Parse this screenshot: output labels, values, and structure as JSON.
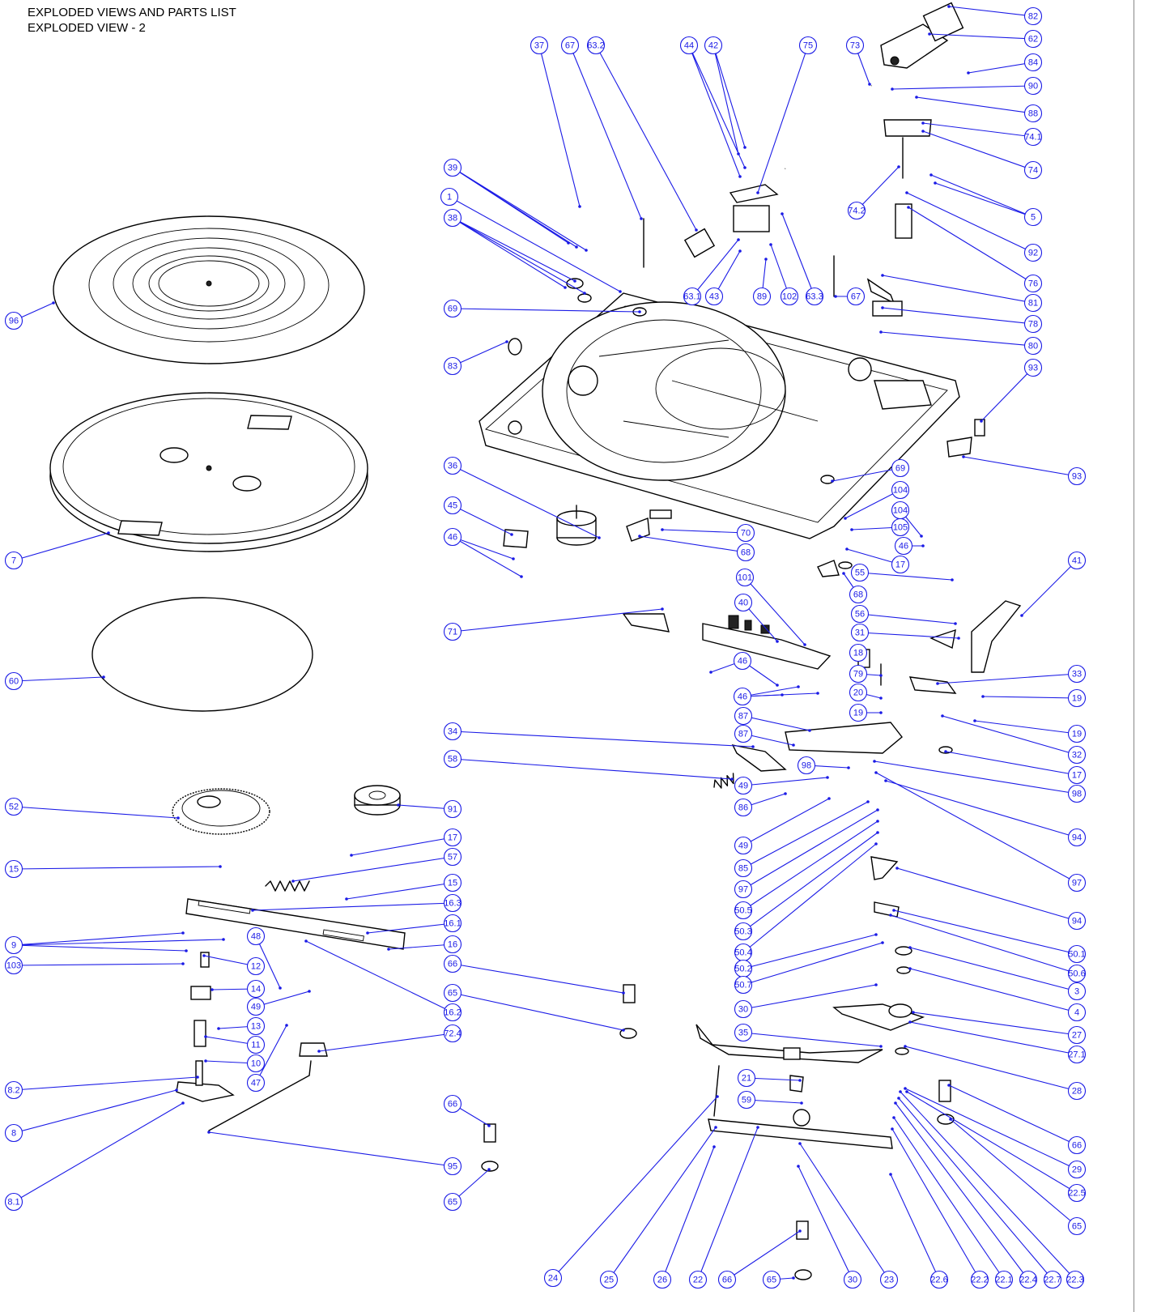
{
  "header": {
    "line1": "EXPLODED VIEWS AND PARTS LIST",
    "line2": "EXPLODED VIEW - 2"
  },
  "colors": {
    "callout": "#1a1ae6",
    "drawing": "#000000"
  },
  "callouts": [
    "82",
    "62",
    "84",
    "90",
    "88",
    "74.1",
    "74",
    "5",
    "92",
    "76",
    "81",
    "78",
    "80",
    "93",
    "37",
    "67",
    "63.2",
    "44",
    "42",
    "75",
    "73",
    "74.2",
    "39",
    "1",
    "38",
    "63.1",
    "43",
    "89",
    "102",
    "63.3",
    "67b",
    "96",
    "69",
    "83",
    "7",
    "36",
    "45",
    "46",
    "70",
    "68",
    "69b",
    "104",
    "104b",
    "105",
    "46b",
    "17",
    "68b",
    "55",
    "41",
    "60",
    "71",
    "101",
    "40",
    "56",
    "31",
    "18",
    "46c",
    "46d",
    "79",
    "33",
    "20",
    "19",
    "19b",
    "87",
    "87b",
    "32",
    "17b",
    "34",
    "58",
    "98",
    "98b",
    "49",
    "86",
    "94",
    "49b",
    "97",
    "85",
    "97b",
    "50.5",
    "50.3",
    "50.4",
    "50.2",
    "50.7",
    "52",
    "91",
    "17c",
    "57",
    "15",
    "15b",
    "16.3",
    "16.1",
    "9",
    "16",
    "103",
    "12",
    "48",
    "66",
    "14",
    "49c",
    "16.2",
    "65",
    "13",
    "11",
    "72.4",
    "10",
    "47",
    "8.2",
    "8",
    "66b",
    "95",
    "65b",
    "8.1",
    "94b",
    "50.1",
    "50.6",
    "3",
    "4",
    "30",
    "27",
    "35",
    "27.1",
    "28",
    "21",
    "66c",
    "59",
    "29",
    "22.5",
    "65c",
    "24",
    "25",
    "26",
    "22",
    "66d",
    "65d",
    "30b",
    "23",
    "22.6",
    "22.2",
    "22.1",
    "22.4",
    "22.7",
    "22.3"
  ],
  "labels": {
    "82": "82",
    "62": "62",
    "84": "84",
    "90": "90",
    "88": "88",
    "74.1": "74.1",
    "74": "74",
    "5": "5",
    "92": "92",
    "76": "76",
    "81": "81",
    "78": "78",
    "80": "80",
    "93": "93",
    "37": "37",
    "67": "67",
    "63.2": "63.2",
    "44": "44",
    "42": "42",
    "75": "75",
    "73": "73",
    "74.2": "74.2",
    "39": "39",
    "1": "1",
    "38": "38",
    "63.1": "63.1",
    "43": "43",
    "89": "89",
    "102": "102",
    "63.3": "63.3",
    "67b": "67",
    "96": "96",
    "69": "69",
    "83": "83",
    "7": "7",
    "36": "36",
    "45": "45",
    "46": "46",
    "70": "70",
    "68": "68",
    "69b": "69",
    "104": "104",
    "104b": "104",
    "105": "105",
    "46b": "46",
    "17": "17",
    "68b": "68",
    "55": "55",
    "41": "41",
    "60": "60",
    "71": "71",
    "101": "101",
    "40": "40",
    "56": "56",
    "31": "31",
    "18": "18",
    "46c": "46",
    "46d": "46",
    "79": "79",
    "33": "33",
    "20": "20",
    "19": "19",
    "19b": "19",
    "87": "87",
    "87b": "87",
    "32": "32",
    "17b": "17",
    "34": "34",
    "58": "58",
    "98": "98",
    "98b": "98",
    "49": "49",
    "86": "86",
    "94": "94",
    "49b": "49",
    "97": "97",
    "85": "85",
    "97b": "97",
    "50.5": "50.5",
    "50.3": "50.3",
    "50.4": "50.4",
    "50.2": "50.2",
    "50.7": "50.7",
    "52": "52",
    "91": "91",
    "17c": "17",
    "57": "57",
    "15": "15",
    "15b": "15",
    "16.3": "16.3",
    "16.1": "16.1",
    "9": "9",
    "16": "16",
    "103": "103",
    "12": "12",
    "48": "48",
    "66": "66",
    "14": "14",
    "49c": "49",
    "16.2": "16.2",
    "65": "65",
    "13": "13",
    "11": "11",
    "72.4": "72.4",
    "10": "10",
    "47": "47",
    "8.2": "8.2",
    "8": "8",
    "66b": "66",
    "95": "95",
    "65b": "65",
    "8.1": "8.1",
    "94b": "94",
    "50.1": "50.1",
    "50.6": "50.6",
    "3": "3",
    "4": "4",
    "30": "30",
    "27": "27",
    "35": "35",
    "27.1": "27.1",
    "28": "28",
    "21": "21",
    "66c": "66",
    "59": "59",
    "29": "29",
    "22.5": "22.5",
    "65c": "65",
    "24": "24",
    "25": "25",
    "26": "26",
    "22": "22",
    "66d": "66",
    "65d": "65",
    "30b": "30",
    "23": "23",
    "22.6": "22.6",
    "22.2": "22.2",
    "22.1": "22.1",
    "22.4": "22.4",
    "22.7": "22.7",
    "22.3": "22.3"
  }
}
